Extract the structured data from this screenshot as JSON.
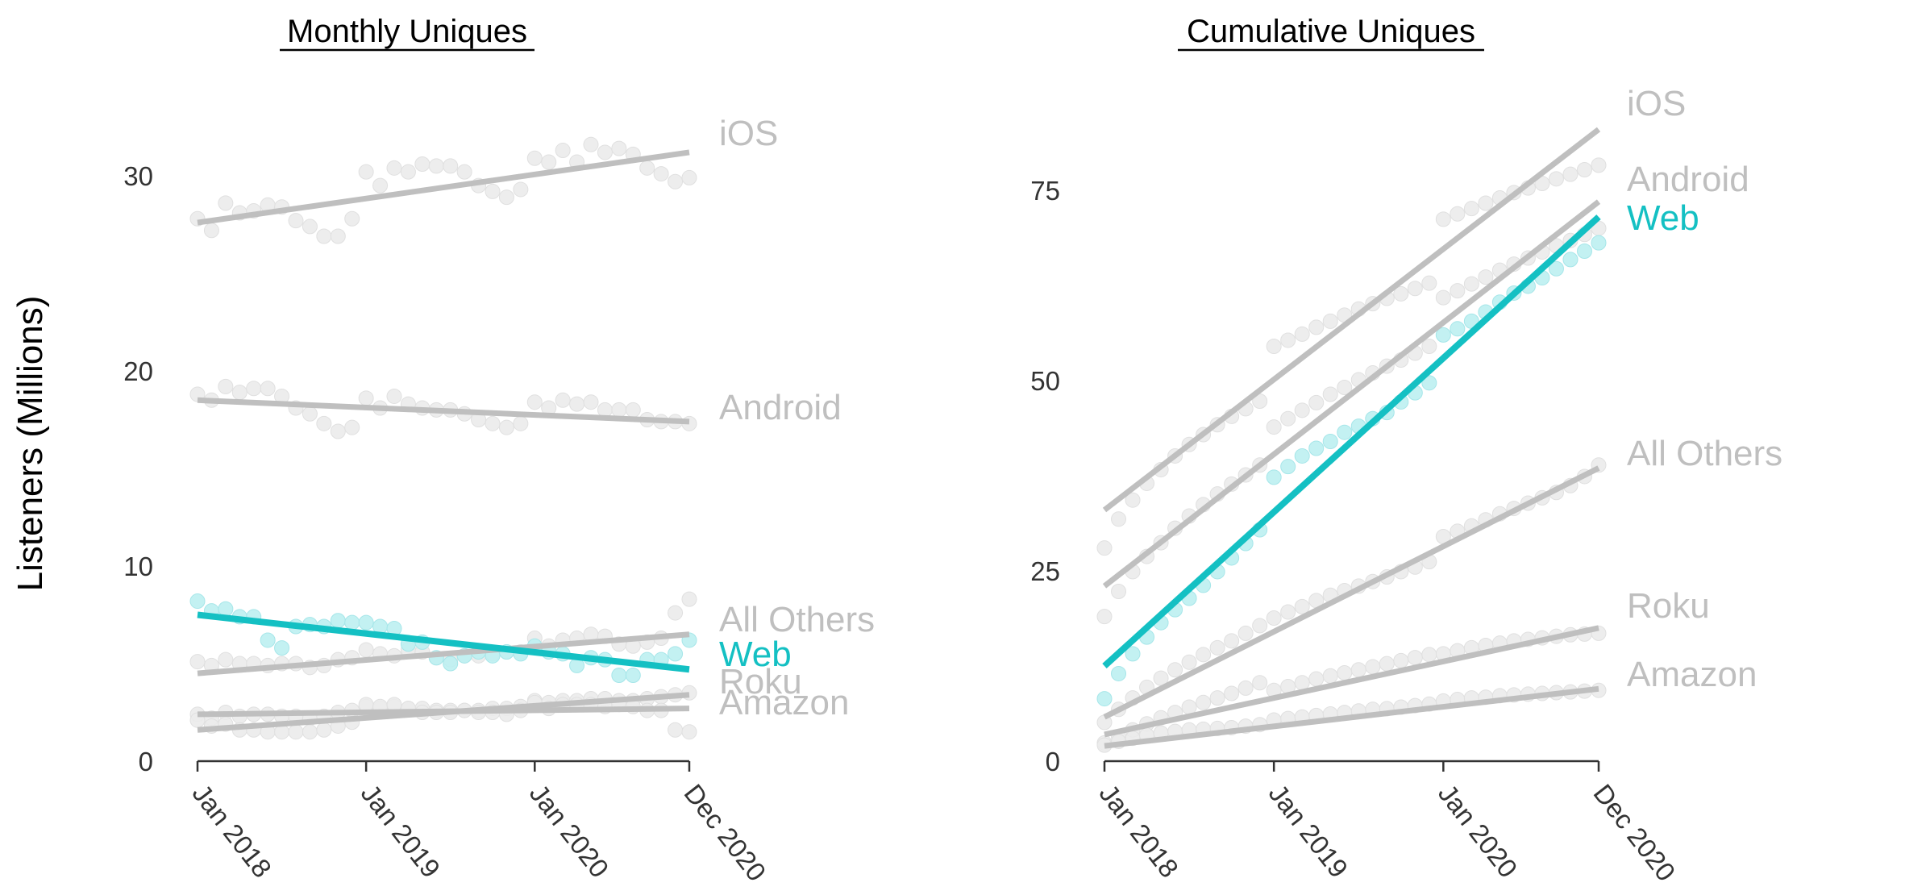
{
  "figure": {
    "ylabel": "Listeners (Millions)"
  },
  "colors": {
    "highlight": "#14C0C3",
    "highlight_points": "#BDEFF1",
    "muted": "#BFBFBF",
    "muted_points": "#EBEBEB"
  },
  "chart_data": [
    {
      "type": "scatter",
      "title": "Monthly Uniques",
      "ylabel": "Listeners (Millions)",
      "ylim": [
        0,
        33
      ],
      "yticks": [
        0,
        10,
        20,
        30
      ],
      "x_axis": {
        "range": [
          "Jan 2018",
          "Dec 2020"
        ],
        "ticks": [
          {
            "date": "2018-01",
            "label": "Jan 2018"
          },
          {
            "date": "2019-01",
            "label": "Jan 2019"
          },
          {
            "date": "2020-01",
            "label": "Jan 2020"
          },
          {
            "date": "2020-12",
            "label": "Dec 2020"
          }
        ]
      },
      "grid": false,
      "x": [
        "2018-01",
        "2018-02",
        "2018-03",
        "2018-04",
        "2018-05",
        "2018-06",
        "2018-07",
        "2018-08",
        "2018-09",
        "2018-10",
        "2018-11",
        "2018-12",
        "2019-01",
        "2019-02",
        "2019-03",
        "2019-04",
        "2019-05",
        "2019-06",
        "2019-07",
        "2019-08",
        "2019-09",
        "2019-10",
        "2019-11",
        "2019-12",
        "2020-01",
        "2020-02",
        "2020-03",
        "2020-04",
        "2020-05",
        "2020-06",
        "2020-07",
        "2020-08",
        "2020-09",
        "2020-10",
        "2020-11",
        "2020-12"
      ],
      "series": [
        {
          "name": "iOS",
          "highlight": false,
          "values": [
            27.8,
            27.2,
            28.6,
            28.1,
            28.2,
            28.5,
            28.4,
            27.7,
            27.4,
            26.9,
            26.9,
            27.8,
            30.2,
            29.5,
            30.4,
            30.2,
            30.6,
            30.5,
            30.5,
            30.2,
            29.5,
            29.2,
            28.9,
            29.3,
            30.9,
            30.7,
            31.3,
            30.7,
            31.6,
            31.2,
            31.4,
            31.1,
            30.4,
            30.1,
            29.7,
            29.9
          ],
          "trend": [
            27.6,
            31.2
          ]
        },
        {
          "name": "Android",
          "highlight": false,
          "values": [
            18.8,
            18.5,
            19.2,
            18.9,
            19.1,
            19.1,
            18.7,
            18.1,
            17.8,
            17.3,
            16.9,
            17.1,
            18.6,
            18.1,
            18.7,
            18.3,
            18.1,
            18.0,
            18.0,
            17.8,
            17.5,
            17.3,
            17.1,
            17.3,
            18.4,
            18.1,
            18.5,
            18.3,
            18.4,
            18.0,
            18.0,
            18.0,
            17.5,
            17.4,
            17.4,
            17.3
          ],
          "trend": [
            18.5,
            17.4
          ]
        },
        {
          "name": "All Others",
          "highlight": false,
          "values": [
            5.1,
            4.9,
            5.2,
            5.0,
            5.0,
            4.9,
            5.0,
            5.0,
            4.8,
            4.9,
            5.2,
            5.3,
            5.7,
            5.5,
            5.4,
            5.7,
            5.6,
            5.3,
            5.2,
            5.4,
            5.4,
            5.5,
            5.6,
            5.6,
            6.3,
            5.9,
            6.2,
            6.3,
            6.5,
            6.4,
            6.0,
            5.9,
            6.1,
            6.3,
            7.6,
            8.3
          ],
          "trend": [
            4.5,
            6.5
          ]
        },
        {
          "name": "Web",
          "highlight": true,
          "values": [
            8.2,
            7.7,
            7.8,
            7.4,
            7.4,
            6.2,
            5.8,
            6.9,
            7.0,
            6.9,
            7.2,
            7.1,
            7.1,
            6.9,
            6.8,
            6.0,
            6.1,
            5.3,
            5.0,
            5.4,
            5.6,
            5.4,
            5.6,
            5.5,
            5.9,
            5.6,
            5.5,
            4.9,
            5.3,
            5.2,
            4.4,
            4.4,
            5.2,
            5.2,
            5.5,
            6.2
          ],
          "trend": [
            7.5,
            4.7
          ]
        },
        {
          "name": "Roku",
          "highlight": false,
          "values": [
            2.4,
            2.2,
            2.5,
            2.3,
            2.4,
            2.4,
            2.3,
            2.3,
            2.2,
            2.3,
            2.5,
            2.6,
            2.8,
            2.7,
            2.8,
            2.7,
            2.7,
            2.6,
            2.6,
            2.6,
            2.6,
            2.7,
            2.7,
            2.8,
            3.1,
            3.0,
            3.1,
            3.1,
            3.2,
            3.2,
            3.1,
            3.1,
            3.2,
            3.3,
            3.4,
            3.5
          ],
          "trend": [
            1.6,
            3.4
          ]
        },
        {
          "name": "Amazon",
          "highlight": false,
          "values": [
            2.1,
            1.8,
            1.9,
            1.6,
            1.6,
            1.5,
            1.5,
            1.5,
            1.5,
            1.6,
            1.8,
            2.0,
            2.9,
            2.8,
            2.9,
            2.7,
            2.5,
            2.5,
            2.5,
            2.6,
            2.5,
            2.5,
            2.4,
            2.6,
            3.0,
            2.7,
            2.9,
            2.9,
            2.9,
            2.8,
            2.9,
            2.8,
            2.6,
            2.6,
            1.6,
            1.5
          ],
          "trend": [
            2.4,
            2.7
          ]
        }
      ]
    },
    {
      "type": "scatter",
      "title": "Cumulative Uniques",
      "ylabel": "Listeners (Millions)",
      "ylim": [
        0,
        85
      ],
      "yticks": [
        0,
        25,
        50,
        75
      ],
      "x_axis": {
        "range": [
          "Jan 2018",
          "Dec 2020"
        ],
        "ticks": [
          {
            "date": "2018-01",
            "label": "Jan 2018"
          },
          {
            "date": "2019-01",
            "label": "Jan 2019"
          },
          {
            "date": "2020-01",
            "label": "Jan 2020"
          },
          {
            "date": "2020-12",
            "label": "Dec 2020"
          }
        ]
      },
      "grid": false,
      "x": [
        "2018-01",
        "2018-02",
        "2018-03",
        "2018-04",
        "2018-05",
        "2018-06",
        "2018-07",
        "2018-08",
        "2018-09",
        "2018-10",
        "2018-11",
        "2018-12",
        "2019-01",
        "2019-02",
        "2019-03",
        "2019-04",
        "2019-05",
        "2019-06",
        "2019-07",
        "2019-08",
        "2019-09",
        "2019-10",
        "2019-11",
        "2019-12",
        "2020-01",
        "2020-02",
        "2020-03",
        "2020-04",
        "2020-05",
        "2020-06",
        "2020-07",
        "2020-08",
        "2020-09",
        "2020-10",
        "2020-11",
        "2020-12"
      ],
      "series": [
        {
          "name": "iOS",
          "highlight": false,
          "values": [
            28.0,
            31.8,
            34.3,
            36.5,
            38.3,
            40.1,
            41.6,
            42.9,
            44.2,
            45.3,
            46.3,
            47.3,
            54.5,
            55.3,
            56.1,
            57.0,
            57.8,
            58.6,
            59.4,
            60.1,
            60.8,
            61.4,
            62.1,
            62.8,
            71.2,
            71.9,
            72.6,
            73.3,
            74.0,
            74.7,
            75.3,
            75.9,
            76.5,
            77.1,
            77.7,
            78.3
          ],
          "trend": [
            33.0,
            83.0
          ]
        },
        {
          "name": "Android",
          "highlight": false,
          "values": [
            19.0,
            22.3,
            24.9,
            26.9,
            28.7,
            30.6,
            32.2,
            33.7,
            35.1,
            36.4,
            37.6,
            38.9,
            43.9,
            45.0,
            46.1,
            47.1,
            48.2,
            49.1,
            50.1,
            51.0,
            51.9,
            52.7,
            53.6,
            54.5,
            60.9,
            61.8,
            62.7,
            63.6,
            64.5,
            65.3,
            66.1,
            66.9,
            67.7,
            68.4,
            69.2,
            70.0
          ],
          "trend": [
            23.0,
            73.5
          ]
        },
        {
          "name": "Web",
          "highlight": true,
          "values": [
            8.2,
            11.5,
            14.1,
            16.3,
            18.2,
            19.9,
            21.4,
            23.1,
            24.9,
            26.7,
            28.6,
            30.4,
            37.3,
            38.7,
            40.1,
            41.1,
            42.0,
            43.2,
            44.0,
            45.0,
            45.8,
            47.2,
            48.4,
            49.7,
            56.0,
            56.8,
            57.8,
            59.0,
            60.3,
            61.5,
            62.4,
            63.5,
            64.7,
            65.9,
            67.0,
            68.1
          ],
          "trend": [
            12.5,
            71.5
          ]
        },
        {
          "name": "All Others",
          "highlight": false,
          "values": [
            5.1,
            6.8,
            8.3,
            9.7,
            10.9,
            12.0,
            13.0,
            14.0,
            14.9,
            15.8,
            16.8,
            17.8,
            18.8,
            19.6,
            20.3,
            21.1,
            21.8,
            22.4,
            23.0,
            23.6,
            24.2,
            24.9,
            25.5,
            26.2,
            29.5,
            30.2,
            30.9,
            31.7,
            32.5,
            33.2,
            33.9,
            34.6,
            35.3,
            36.2,
            37.4,
            38.9
          ],
          "trend": [
            5.8,
            38.5
          ]
        },
        {
          "name": "Roku",
          "highlight": false,
          "values": [
            2.4,
            3.2,
            4.1,
            4.9,
            5.7,
            6.4,
            7.1,
            7.7,
            8.3,
            8.9,
            9.6,
            10.3,
            9.3,
            9.8,
            10.3,
            10.8,
            11.2,
            11.6,
            12.0,
            12.4,
            12.8,
            13.2,
            13.6,
            14.0,
            14.1,
            14.5,
            14.9,
            15.2,
            15.5,
            15.8,
            16.0,
            16.2,
            16.4,
            16.6,
            16.7,
            16.8
          ],
          "trend": [
            3.5,
            17.5
          ]
        },
        {
          "name": "Amazon",
          "highlight": false,
          "values": [
            2.1,
            2.6,
            3.0,
            3.4,
            3.7,
            3.9,
            4.1,
            4.2,
            4.3,
            4.4,
            4.6,
            4.8,
            5.4,
            5.6,
            5.8,
            6.0,
            6.2,
            6.4,
            6.6,
            6.8,
            6.9,
            7.1,
            7.3,
            7.5,
            7.9,
            8.1,
            8.3,
            8.4,
            8.6,
            8.7,
            8.8,
            8.9,
            9.0,
            9.1,
            9.2,
            9.3
          ],
          "trend": [
            2.0,
            9.5
          ]
        }
      ]
    }
  ]
}
